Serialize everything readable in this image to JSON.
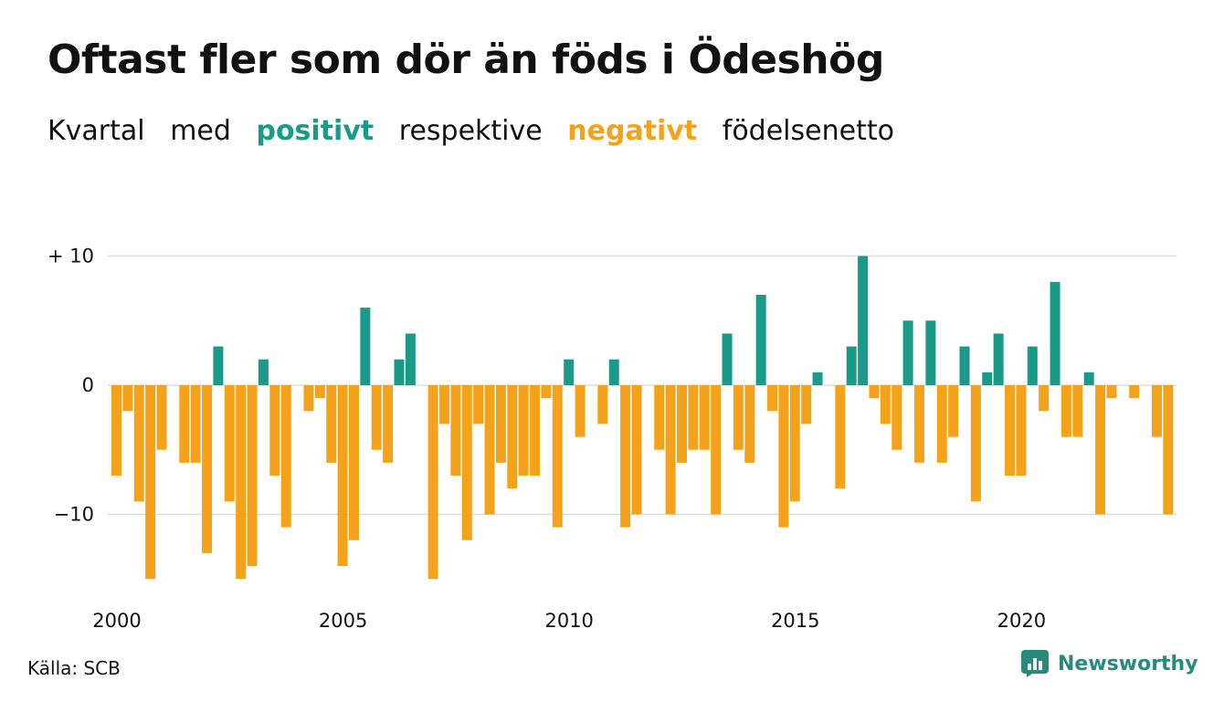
{
  "header": {
    "title": "Oftast fler som dör än föds i Ödeshög",
    "subtitle": {
      "part1": "Kvartal",
      "part2": "med",
      "positive": "positivt",
      "part3": "respektive",
      "negative": "negativt",
      "part4": "födelsenetto"
    }
  },
  "footer": {
    "source": "Källa: SCB",
    "brand": "Newsworthy",
    "brand_icon": "newsworthy-logo-icon"
  },
  "colors": {
    "positive": "#1a9a88",
    "negative": "#f5a21b",
    "grid": "#dddddd",
    "brand": "#2a8a7a"
  },
  "chart_data": {
    "type": "bar",
    "x_start": "2000 Q1",
    "x_end": "2023 Q2",
    "xticks": [
      "2000",
      "2005",
      "2010",
      "2015",
      "2020"
    ],
    "yticks": [
      {
        "value": 10,
        "label": "+ 10"
      },
      {
        "value": 0,
        "label": "0"
      },
      {
        "value": -10,
        "label": "−10"
      }
    ],
    "ylim": [
      -15.5,
      10
    ],
    "grid": true,
    "values": [
      -7,
      -2,
      -9,
      -15,
      -5,
      0,
      -6,
      -6,
      -13,
      3,
      -9,
      -15,
      -14,
      2,
      -7,
      -11,
      0,
      -2,
      -1,
      -6,
      -14,
      -12,
      6,
      -5,
      -6,
      2,
      4,
      0,
      -15,
      -3,
      -7,
      -12,
      -3,
      -10,
      -6,
      -8,
      -7,
      -7,
      -1,
      -11,
      2,
      -4,
      0,
      -3,
      2,
      -11,
      -10,
      0,
      -5,
      -10,
      -6,
      -5,
      -5,
      -10,
      4,
      -5,
      -6,
      7,
      -2,
      -11,
      -9,
      -3,
      1,
      0,
      -8,
      3,
      10,
      -1,
      -3,
      -5,
      5,
      -6,
      5,
      -6,
      -4,
      3,
      -9,
      1,
      4,
      -7,
      -7,
      3,
      -2,
      8,
      -4,
      -4,
      1,
      -10,
      -1,
      0,
      -1,
      0,
      -4,
      -10
    ]
  }
}
